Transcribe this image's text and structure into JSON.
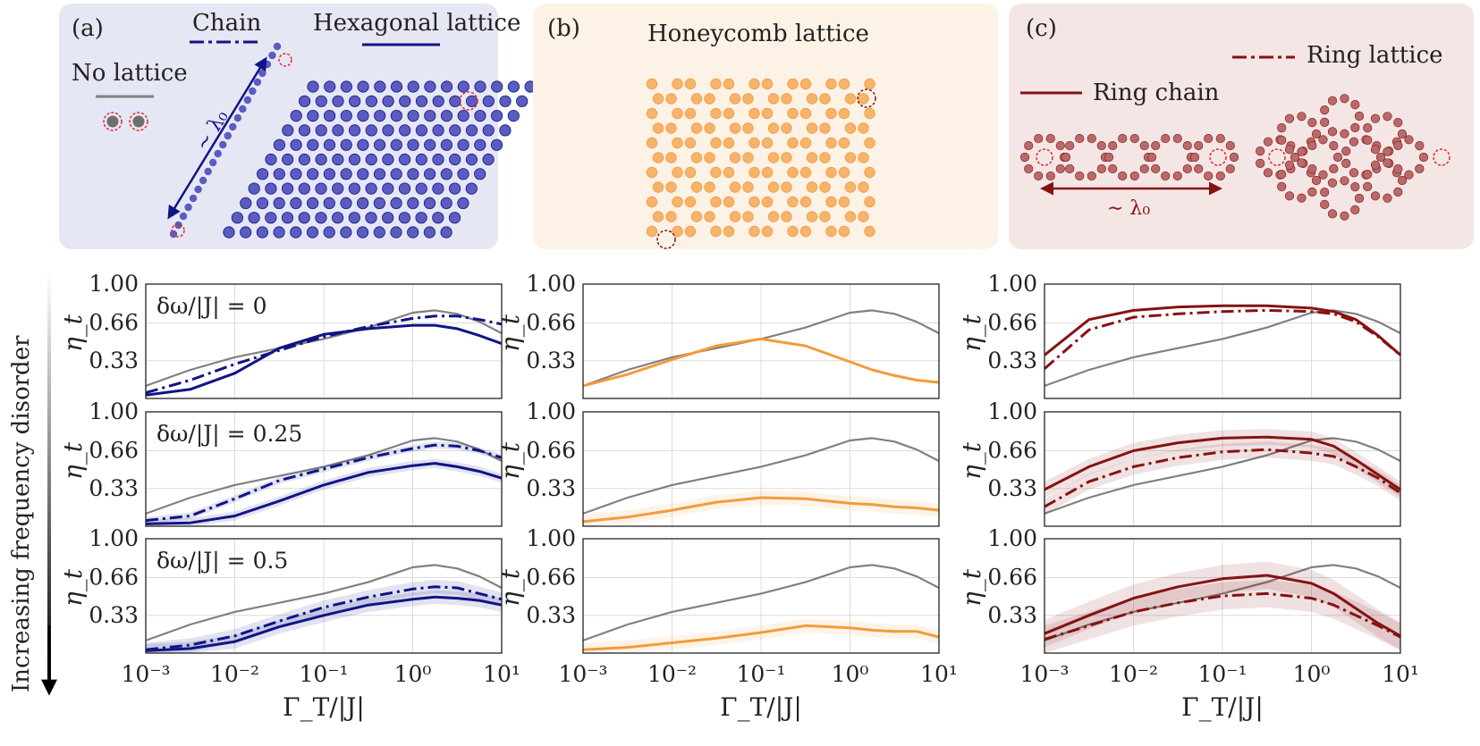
{
  "colors": {
    "none": "#808080",
    "a": "#101486",
    "b": "#f39b3b",
    "c": "#861212",
    "panel_a_bg": "#e6e7f4",
    "panel_b_bg": "#fdf2e6",
    "panel_c_bg": "#f5e6e6"
  },
  "side_label": "Increasing frequency disorder",
  "panels": {
    "a": {
      "label": "(a)",
      "legend_none": "No lattice",
      "legend_chain": "Chain",
      "legend_lattice": "Hexagonal lattice",
      "distance": "∼ λ₀"
    },
    "b": {
      "label": "(b)",
      "title": "Honeycomb lattice"
    },
    "c": {
      "label": "(c)",
      "legend_ring_chain": "Ring chain",
      "legend_ring_lattice": "Ring lattice",
      "distance": "∼ λ₀"
    }
  },
  "chart_data": [
    {
      "id": "a0",
      "type": "line",
      "row": 0,
      "col": 0,
      "annotation": "δω/|J| = 0",
      "xlabel": "Γ_T/|J|",
      "ylabel": "η_t",
      "xscale": "log",
      "xlim": [
        0.001,
        10
      ],
      "ylim": [
        0,
        1
      ],
      "xticks": [
        "10⁻³",
        "10⁻²",
        "10⁻¹",
        "10⁰",
        "10¹"
      ],
      "yticks": [
        "1.00",
        "0.66",
        "0.33"
      ],
      "series": [
        {
          "name": "No lattice",
          "style": "solid",
          "colorKey": "none",
          "x": [
            -3,
            -2.5,
            -2,
            -1.5,
            -1,
            -0.5,
            0,
            0.25,
            0.5,
            0.75,
            1
          ],
          "y": [
            0.11,
            0.25,
            0.36,
            0.44,
            0.52,
            0.62,
            0.75,
            0.77,
            0.74,
            0.67,
            0.57
          ]
        },
        {
          "name": "Chain",
          "style": "dashdot",
          "colorKey": "a",
          "x": [
            -3,
            -2.5,
            -2,
            -1.5,
            -1,
            -0.5,
            0,
            0.25,
            0.5,
            0.75,
            1
          ],
          "y": [
            0.05,
            0.16,
            0.3,
            0.42,
            0.54,
            0.63,
            0.7,
            0.72,
            0.72,
            0.69,
            0.65
          ]
        },
        {
          "name": "Hexagonal lattice",
          "style": "solid",
          "colorKey": "a",
          "x": [
            -3,
            -2.5,
            -2,
            -1.5,
            -1,
            -0.5,
            0,
            0.25,
            0.5,
            0.75,
            1
          ],
          "y": [
            0.03,
            0.08,
            0.22,
            0.44,
            0.56,
            0.61,
            0.64,
            0.64,
            0.61,
            0.55,
            0.48
          ]
        }
      ]
    },
    {
      "id": "a1",
      "type": "line",
      "row": 1,
      "col": 0,
      "annotation": "δω/|J| = 0.25",
      "xlabel": "Γ_T/|J|",
      "ylabel": "η_t",
      "xscale": "log",
      "xlim": [
        0.001,
        10
      ],
      "ylim": [
        0,
        1
      ],
      "xticks": [
        "10⁻³",
        "10⁻²",
        "10⁻¹",
        "10⁰",
        "10¹"
      ],
      "yticks": [
        "1.00",
        "0.66",
        "0.33"
      ],
      "series": [
        {
          "name": "No lattice",
          "style": "solid",
          "colorKey": "none",
          "x": [
            -3,
            -2.5,
            -2,
            -1.5,
            -1,
            -0.5,
            0,
            0.25,
            0.5,
            0.75,
            1
          ],
          "y": [
            0.11,
            0.25,
            0.36,
            0.44,
            0.52,
            0.62,
            0.75,
            0.77,
            0.74,
            0.67,
            0.57
          ]
        },
        {
          "name": "Chain",
          "style": "dashdot",
          "colorKey": "a",
          "band": 0.03,
          "x": [
            -3,
            -2.5,
            -2,
            -1.5,
            -1,
            -0.5,
            0,
            0.25,
            0.5,
            0.75,
            1
          ],
          "y": [
            0.05,
            0.09,
            0.24,
            0.4,
            0.5,
            0.6,
            0.68,
            0.71,
            0.7,
            0.66,
            0.6
          ]
        },
        {
          "name": "Hexagonal lattice",
          "style": "solid",
          "colorKey": "a",
          "band": 0.04,
          "x": [
            -3,
            -2.5,
            -2,
            -1.5,
            -1,
            -0.5,
            0,
            0.25,
            0.5,
            0.75,
            1
          ],
          "y": [
            0.02,
            0.03,
            0.09,
            0.22,
            0.36,
            0.47,
            0.53,
            0.55,
            0.52,
            0.48,
            0.42
          ]
        }
      ]
    },
    {
      "id": "a2",
      "type": "line",
      "row": 2,
      "col": 0,
      "annotation": "δω/|J| = 0.5",
      "xlabel": "Γ_T/|J|",
      "ylabel": "η_t",
      "xscale": "log",
      "xlim": [
        0.001,
        10
      ],
      "ylim": [
        0,
        1
      ],
      "xticks": [
        "10⁻³",
        "10⁻²",
        "10⁻¹",
        "10⁰",
        "10¹"
      ],
      "yticks": [
        "1.00",
        "0.66",
        "0.33"
      ],
      "series": [
        {
          "name": "No lattice",
          "style": "solid",
          "colorKey": "none",
          "x": [
            -3,
            -2.5,
            -2,
            -1.5,
            -1,
            -0.5,
            0,
            0.25,
            0.5,
            0.75,
            1
          ],
          "y": [
            0.11,
            0.25,
            0.36,
            0.44,
            0.52,
            0.62,
            0.75,
            0.77,
            0.74,
            0.67,
            0.57
          ]
        },
        {
          "name": "Chain",
          "style": "dashdot",
          "colorKey": "a",
          "band": 0.06,
          "x": [
            -3,
            -2.5,
            -2,
            -1.5,
            -1,
            -0.5,
            0,
            0.25,
            0.5,
            0.75,
            1
          ],
          "y": [
            0.03,
            0.07,
            0.15,
            0.28,
            0.4,
            0.49,
            0.56,
            0.58,
            0.57,
            0.52,
            0.47
          ]
        },
        {
          "name": "Hexagonal lattice",
          "style": "solid",
          "colorKey": "a",
          "band": 0.06,
          "x": [
            -3,
            -2.5,
            -2,
            -1.5,
            -1,
            -0.5,
            0,
            0.25,
            0.5,
            0.75,
            1
          ],
          "y": [
            0.02,
            0.04,
            0.1,
            0.23,
            0.33,
            0.42,
            0.47,
            0.49,
            0.48,
            0.46,
            0.42
          ]
        }
      ]
    },
    {
      "id": "b0",
      "type": "line",
      "row": 0,
      "col": 1,
      "annotation": "",
      "xlabel": "Γ_T/|J|",
      "ylabel": "η_t",
      "xscale": "log",
      "xlim": [
        0.001,
        10
      ],
      "ylim": [
        0,
        1
      ],
      "xticks": [
        "10⁻³",
        "10⁻²",
        "10⁻¹",
        "10⁰",
        "10¹"
      ],
      "yticks": [
        "1.00",
        "0.66",
        "0.33"
      ],
      "series": [
        {
          "name": "No lattice",
          "style": "solid",
          "colorKey": "none",
          "x": [
            -3,
            -2.5,
            -2,
            -1.5,
            -1,
            -0.5,
            0,
            0.25,
            0.5,
            0.75,
            1
          ],
          "y": [
            0.11,
            0.25,
            0.36,
            0.44,
            0.52,
            0.62,
            0.75,
            0.77,
            0.74,
            0.67,
            0.57
          ]
        },
        {
          "name": "Honeycomb lattice",
          "style": "solid",
          "colorKey": "b",
          "x": [
            -3,
            -2.5,
            -2,
            -1.5,
            -1,
            -0.5,
            0,
            0.25,
            0.5,
            0.75,
            1
          ],
          "y": [
            0.11,
            0.21,
            0.34,
            0.46,
            0.52,
            0.46,
            0.32,
            0.25,
            0.2,
            0.16,
            0.14
          ]
        }
      ]
    },
    {
      "id": "b1",
      "type": "line",
      "row": 1,
      "col": 1,
      "annotation": "",
      "xlabel": "Γ_T/|J|",
      "ylabel": "η_t",
      "xscale": "log",
      "xlim": [
        0.001,
        10
      ],
      "ylim": [
        0,
        1
      ],
      "xticks": [
        "10⁻³",
        "10⁻²",
        "10⁻¹",
        "10⁰",
        "10¹"
      ],
      "yticks": [
        "1.00",
        "0.66",
        "0.33"
      ],
      "series": [
        {
          "name": "No lattice",
          "style": "solid",
          "colorKey": "none",
          "x": [
            -3,
            -2.5,
            -2,
            -1.5,
            -1,
            -0.5,
            0,
            0.25,
            0.5,
            0.75,
            1
          ],
          "y": [
            0.11,
            0.25,
            0.36,
            0.44,
            0.52,
            0.62,
            0.75,
            0.77,
            0.74,
            0.67,
            0.57
          ]
        },
        {
          "name": "Honeycomb lattice",
          "style": "solid",
          "colorKey": "b",
          "band": 0.06,
          "x": [
            -3,
            -2.5,
            -2,
            -1.5,
            -1,
            -0.5,
            0,
            0.25,
            0.5,
            0.75,
            1
          ],
          "y": [
            0.04,
            0.08,
            0.14,
            0.21,
            0.25,
            0.24,
            0.2,
            0.19,
            0.17,
            0.16,
            0.14
          ]
        }
      ]
    },
    {
      "id": "b2",
      "type": "line",
      "row": 2,
      "col": 1,
      "annotation": "",
      "xlabel": "Γ_T/|J|",
      "ylabel": "η_t",
      "xscale": "log",
      "xlim": [
        0.001,
        10
      ],
      "ylim": [
        0,
        1
      ],
      "xticks": [
        "10⁻³",
        "10⁻²",
        "10⁻¹",
        "10⁰",
        "10¹"
      ],
      "yticks": [
        "1.00",
        "0.66",
        "0.33"
      ],
      "series": [
        {
          "name": "No lattice",
          "style": "solid",
          "colorKey": "none",
          "x": [
            -3,
            -2.5,
            -2,
            -1.5,
            -1,
            -0.5,
            0,
            0.25,
            0.5,
            0.75,
            1
          ],
          "y": [
            0.11,
            0.25,
            0.36,
            0.44,
            0.52,
            0.62,
            0.75,
            0.77,
            0.74,
            0.67,
            0.57
          ]
        },
        {
          "name": "Honeycomb lattice",
          "style": "solid",
          "colorKey": "b",
          "band": 0.06,
          "x": [
            -3,
            -2.5,
            -2,
            -1.5,
            -1,
            -0.5,
            0,
            0.25,
            0.5,
            0.75,
            1
          ],
          "y": [
            0.03,
            0.05,
            0.09,
            0.13,
            0.18,
            0.24,
            0.22,
            0.2,
            0.19,
            0.19,
            0.14
          ]
        }
      ]
    },
    {
      "id": "c0",
      "type": "line",
      "row": 0,
      "col": 2,
      "annotation": "",
      "xlabel": "Γ_T/|J|",
      "ylabel": "η_t",
      "xscale": "log",
      "xlim": [
        0.001,
        10
      ],
      "ylim": [
        0,
        1
      ],
      "xticks": [
        "10⁻³",
        "10⁻²",
        "10⁻¹",
        "10⁰",
        "10¹"
      ],
      "yticks": [
        "1.00",
        "0.66",
        "0.33"
      ],
      "series": [
        {
          "name": "No lattice",
          "style": "solid",
          "colorKey": "none",
          "x": [
            -3,
            -2.5,
            -2,
            -1.5,
            -1,
            -0.5,
            0,
            0.25,
            0.5,
            0.75,
            1
          ],
          "y": [
            0.11,
            0.25,
            0.36,
            0.44,
            0.52,
            0.62,
            0.75,
            0.77,
            0.74,
            0.67,
            0.57
          ]
        },
        {
          "name": "Ring chain",
          "style": "solid",
          "colorKey": "c",
          "x": [
            -3,
            -2.5,
            -2,
            -1.5,
            -1,
            -0.5,
            0,
            0.25,
            0.5,
            0.75,
            1
          ],
          "y": [
            0.38,
            0.69,
            0.77,
            0.8,
            0.81,
            0.81,
            0.79,
            0.76,
            0.69,
            0.55,
            0.38
          ]
        },
        {
          "name": "Ring lattice",
          "style": "dashdot",
          "colorKey": "c",
          "x": [
            -3,
            -2.5,
            -2,
            -1.5,
            -1,
            -0.5,
            0,
            0.25,
            0.5,
            0.75,
            1
          ],
          "y": [
            0.26,
            0.6,
            0.71,
            0.74,
            0.76,
            0.77,
            0.76,
            0.74,
            0.67,
            0.54,
            0.38
          ]
        }
      ]
    },
    {
      "id": "c1",
      "type": "line",
      "row": 1,
      "col": 2,
      "annotation": "",
      "xlabel": "Γ_T/|J|",
      "ylabel": "η_t",
      "xscale": "log",
      "xlim": [
        0.001,
        10
      ],
      "ylim": [
        0,
        1
      ],
      "xticks": [
        "10⁻³",
        "10⁻²",
        "10⁻¹",
        "10⁰",
        "10¹"
      ],
      "yticks": [
        "1.00",
        "0.66",
        "0.33"
      ],
      "series": [
        {
          "name": "No lattice",
          "style": "solid",
          "colorKey": "none",
          "x": [
            -3,
            -2.5,
            -2,
            -1.5,
            -1,
            -0.5,
            0,
            0.25,
            0.5,
            0.75,
            1
          ],
          "y": [
            0.11,
            0.25,
            0.36,
            0.44,
            0.52,
            0.62,
            0.75,
            0.77,
            0.74,
            0.67,
            0.57
          ]
        },
        {
          "name": "Ring chain",
          "style": "solid",
          "colorKey": "c",
          "band": 0.07,
          "x": [
            -3,
            -2.5,
            -2,
            -1.5,
            -1,
            -0.5,
            0,
            0.25,
            0.5,
            0.75,
            1
          ],
          "y": [
            0.32,
            0.52,
            0.66,
            0.73,
            0.77,
            0.78,
            0.76,
            0.7,
            0.58,
            0.45,
            0.32
          ]
        },
        {
          "name": "Ring lattice",
          "style": "dashdot",
          "colorKey": "c",
          "band": 0.07,
          "x": [
            -3,
            -2.5,
            -2,
            -1.5,
            -1,
            -0.5,
            0,
            0.25,
            0.5,
            0.75,
            1
          ],
          "y": [
            0.17,
            0.39,
            0.52,
            0.6,
            0.65,
            0.67,
            0.64,
            0.61,
            0.52,
            0.42,
            0.29
          ]
        }
      ]
    },
    {
      "id": "c2",
      "type": "line",
      "row": 2,
      "col": 2,
      "annotation": "",
      "xlabel": "Γ_T/|J|",
      "ylabel": "η_t",
      "xscale": "log",
      "xlim": [
        0.001,
        10
      ],
      "ylim": [
        0,
        1
      ],
      "xticks": [
        "10⁻³",
        "10⁻²",
        "10⁻¹",
        "10⁰",
        "10¹"
      ],
      "yticks": [
        "1.00",
        "0.66",
        "0.33"
      ],
      "series": [
        {
          "name": "No lattice",
          "style": "solid",
          "colorKey": "none",
          "x": [
            -3,
            -2.5,
            -2,
            -1.5,
            -1,
            -0.5,
            0,
            0.25,
            0.5,
            0.75,
            1
          ],
          "y": [
            0.11,
            0.25,
            0.36,
            0.44,
            0.52,
            0.62,
            0.75,
            0.77,
            0.74,
            0.67,
            0.57
          ]
        },
        {
          "name": "Ring chain",
          "style": "solid",
          "colorKey": "c",
          "band": 0.12,
          "x": [
            -3,
            -2.5,
            -2,
            -1.5,
            -1,
            -0.5,
            0,
            0.25,
            0.5,
            0.75,
            1
          ],
          "y": [
            0.17,
            0.33,
            0.48,
            0.58,
            0.65,
            0.68,
            0.61,
            0.52,
            0.39,
            0.26,
            0.15
          ]
        },
        {
          "name": "Ring lattice",
          "style": "dashdot",
          "colorKey": "c",
          "band": 0.12,
          "x": [
            -3,
            -2.5,
            -2,
            -1.5,
            -1,
            -0.5,
            0,
            0.25,
            0.5,
            0.75,
            1
          ],
          "y": [
            0.12,
            0.24,
            0.36,
            0.44,
            0.5,
            0.52,
            0.48,
            0.42,
            0.33,
            0.24,
            0.14
          ]
        }
      ]
    }
  ]
}
